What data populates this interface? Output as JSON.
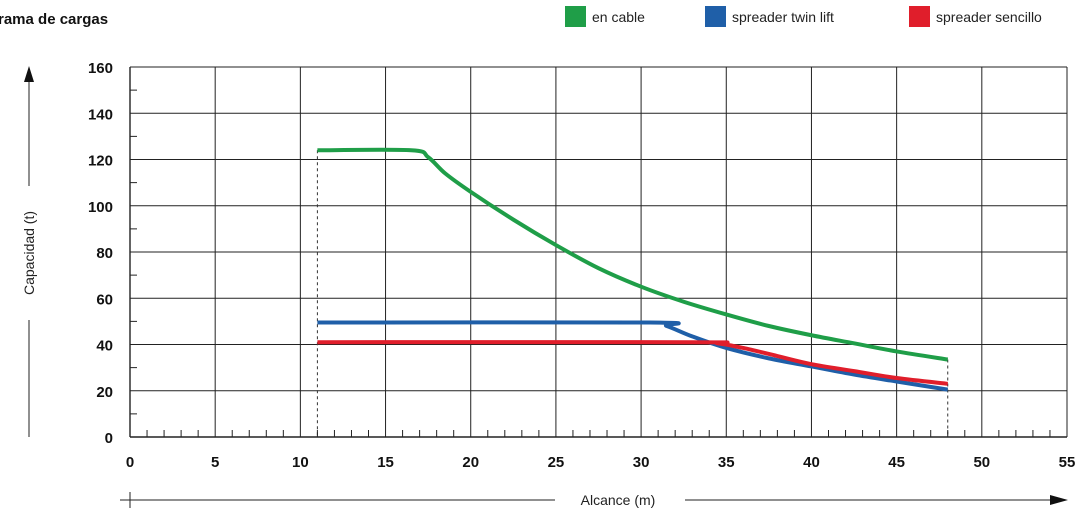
{
  "chart_data": {
    "type": "line",
    "title": "rama de cargas",
    "xlabel": "Alcance (m)",
    "ylabel": "Capacidad (t)",
    "xlim": [
      0,
      55
    ],
    "ylim": [
      0,
      160
    ],
    "x_ticks": [
      "0",
      "5",
      "10",
      "15",
      "20",
      "25",
      "30",
      "35",
      "40",
      "45",
      "50",
      "55"
    ],
    "y_ticks": [
      "0",
      "20",
      "40",
      "60",
      "80",
      "100",
      "120",
      "140",
      "160"
    ],
    "grid": true,
    "legend_position": "top-right",
    "series": [
      {
        "name": "en cable",
        "color": "#1f9e48",
        "x": [
          11,
          16.5,
          17.5,
          18.5,
          20,
          22.5,
          25,
          27.5,
          30,
          32.5,
          35,
          37.5,
          40,
          42.5,
          45,
          48
        ],
        "y": [
          124,
          124,
          121,
          114,
          106,
          94,
          83,
          73,
          65,
          58.5,
          53,
          48,
          44,
          40.5,
          37,
          33.5
        ]
      },
      {
        "name": "spreader twin lift",
        "color": "#1f5fa8",
        "x": [
          11,
          30.5,
          31.5,
          33,
          35,
          37.5,
          40,
          42.5,
          45,
          48
        ],
        "y": [
          49.5,
          49.5,
          48,
          43.5,
          38.5,
          34,
          30.5,
          27,
          24,
          20.5
        ]
      },
      {
        "name": "spreader sencillo",
        "color": "#e01e2b",
        "x": [
          11,
          33,
          34.5,
          36,
          38,
          40,
          42.5,
          45,
          48
        ],
        "y": [
          41,
          41,
          40.5,
          38.5,
          35,
          31.5,
          28.5,
          25.5,
          23
        ]
      }
    ],
    "guide_lines_x": [
      11,
      48
    ]
  }
}
